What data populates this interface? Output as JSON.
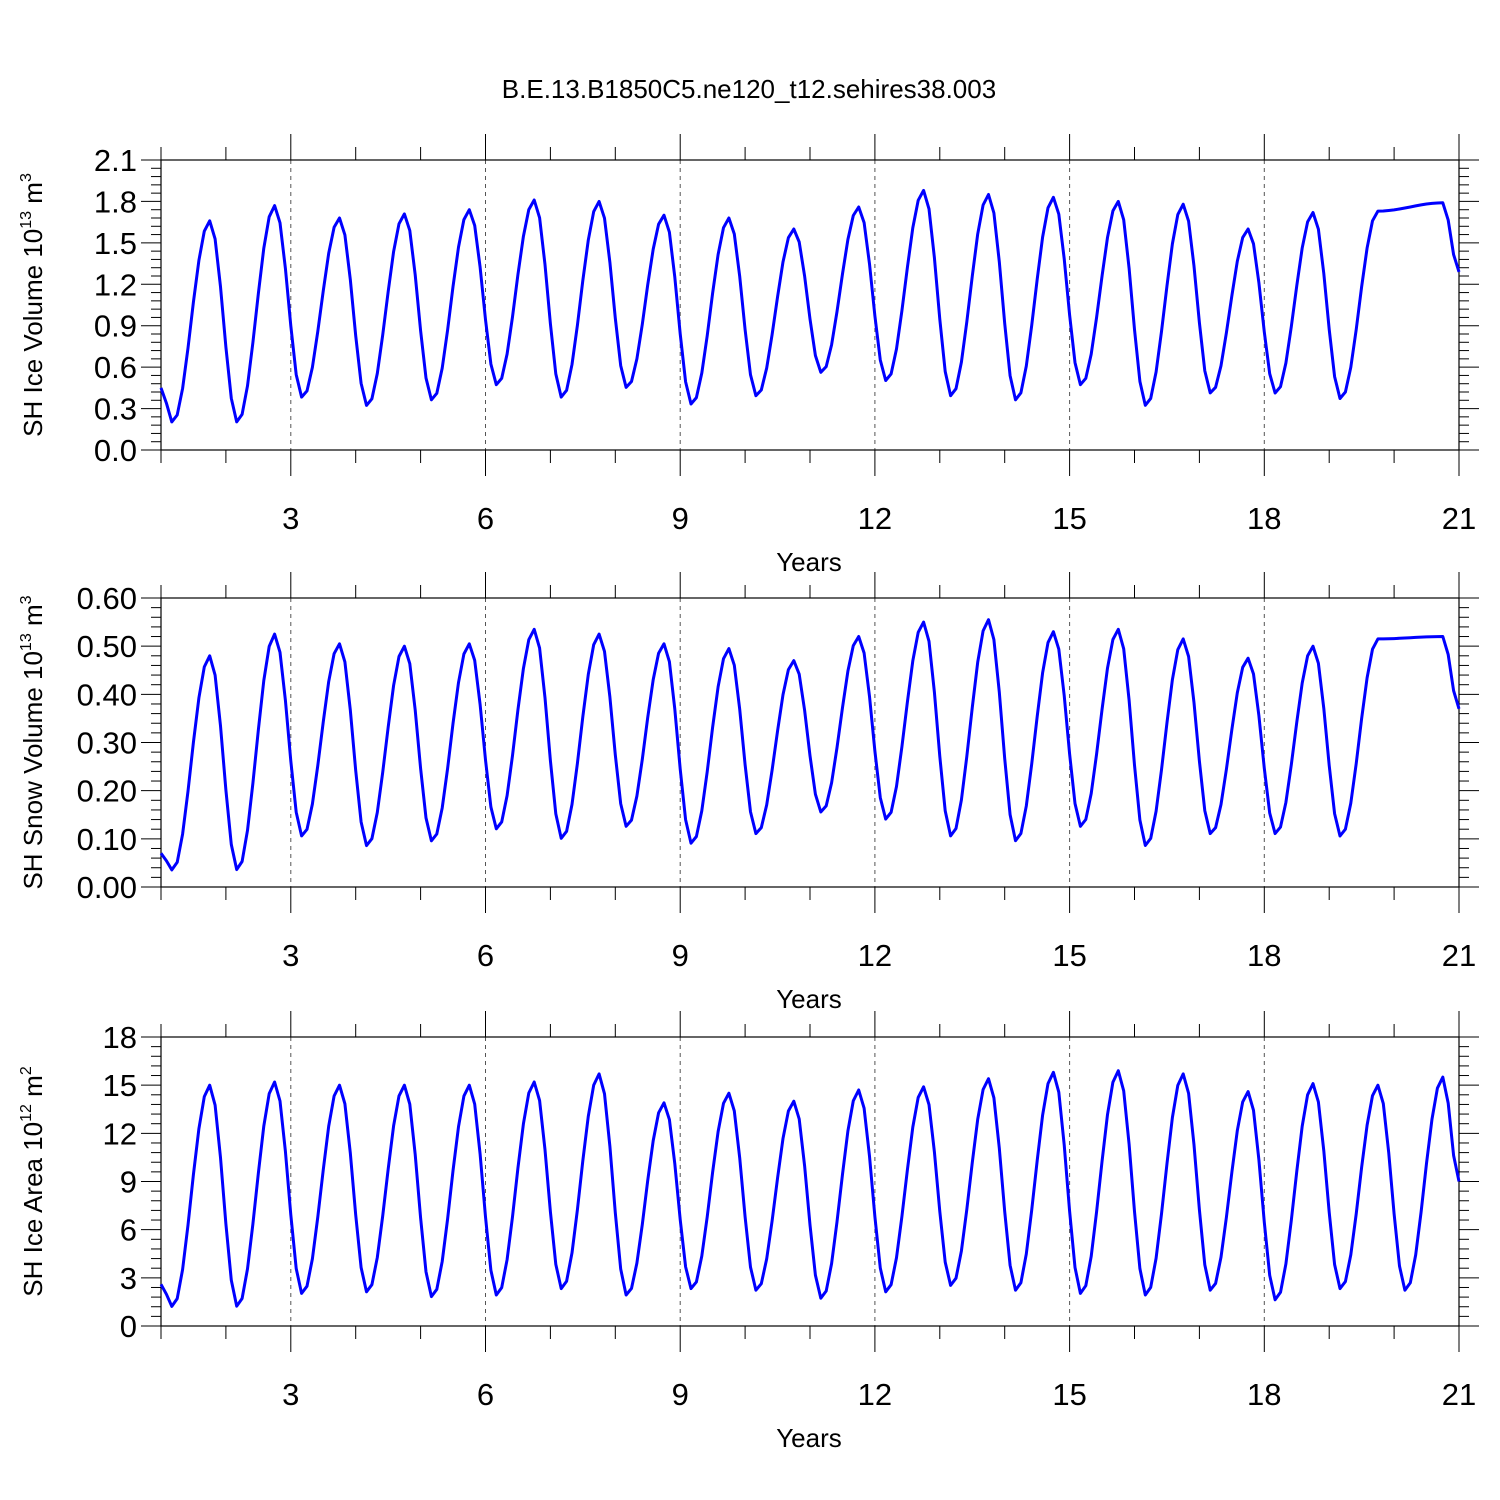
{
  "title": "B.E.13.B1850C5.ne120_t12.sehires38.003",
  "series_color": "#0000ff",
  "chart_data": [
    {
      "type": "line",
      "ylabel": "SH Ice Volume 10",
      "ylabel_exp": "13",
      "ylabel_unit": " m",
      "ylabel_unit_exp": "3",
      "xlabel": "Years",
      "xlim": [
        1,
        21
      ],
      "ylim": [
        0,
        2.1
      ],
      "xticks": [
        3,
        6,
        9,
        12,
        15,
        18,
        21
      ],
      "xtick_labels": [
        "3",
        "6",
        "9",
        "12",
        "15",
        "18",
        "21"
      ],
      "yticks": [
        0,
        0.3,
        0.6,
        0.9,
        1.2,
        1.5,
        1.8,
        2.1
      ],
      "ytick_labels": [
        "0.0",
        "0.3",
        "0.6",
        "0.9",
        "1.2",
        "1.5",
        "1.8",
        "2.1"
      ],
      "grid": "vertical dashed at major x ticks",
      "annual_min": [
        0.2,
        0.38,
        0.32,
        0.36,
        0.47,
        0.38,
        0.45,
        0.33,
        0.39,
        0.56,
        0.5,
        0.39,
        0.36,
        0.47,
        0.32,
        0.41,
        0.41,
        0.37
      ],
      "annual_max": [
        1.66,
        1.77,
        1.68,
        1.71,
        1.74,
        1.81,
        1.8,
        1.7,
        1.68,
        1.6,
        1.76,
        1.88,
        1.85,
        1.83,
        1.8,
        1.78,
        1.6,
        1.72,
        1.73,
        1.79
      ],
      "first_value": 0.45,
      "last_value": 1.29
    },
    {
      "type": "line",
      "ylabel": "SH Snow Volume 10",
      "ylabel_exp": "13",
      "ylabel_unit": " m",
      "ylabel_unit_exp": "3",
      "xlabel": "Years",
      "xlim": [
        1,
        21
      ],
      "ylim": [
        0,
        0.6
      ],
      "xticks": [
        3,
        6,
        9,
        12,
        15,
        18,
        21
      ],
      "xtick_labels": [
        "3",
        "6",
        "9",
        "12",
        "15",
        "18",
        "21"
      ],
      "yticks": [
        0,
        0.1,
        0.2,
        0.3,
        0.4,
        0.5,
        0.6
      ],
      "ytick_labels": [
        "0.00",
        "0.10",
        "0.20",
        "0.30",
        "0.40",
        "0.50",
        "0.60"
      ],
      "grid": "vertical dashed at major x ticks",
      "annual_min": [
        0.035,
        0.105,
        0.085,
        0.095,
        0.12,
        0.1,
        0.125,
        0.09,
        0.11,
        0.155,
        0.14,
        0.105,
        0.095,
        0.125,
        0.085,
        0.11,
        0.11,
        0.105
      ],
      "annual_max": [
        0.48,
        0.525,
        0.505,
        0.5,
        0.505,
        0.535,
        0.525,
        0.505,
        0.495,
        0.47,
        0.52,
        0.55,
        0.555,
        0.53,
        0.535,
        0.515,
        0.475,
        0.5,
        0.515,
        0.52
      ],
      "first_value": 0.07,
      "last_value": 0.37
    },
    {
      "type": "line",
      "ylabel": "SH Ice Area 10",
      "ylabel_exp": "12",
      "ylabel_unit": " m",
      "ylabel_unit_exp": "2",
      "xlabel": "Years",
      "xlim": [
        1,
        21
      ],
      "ylim": [
        0,
        18
      ],
      "xticks": [
        3,
        6,
        9,
        12,
        15,
        18,
        21
      ],
      "xtick_labels": [
        "3",
        "6",
        "9",
        "12",
        "15",
        "18",
        "21"
      ],
      "yticks": [
        0,
        3,
        6,
        9,
        12,
        15,
        18
      ],
      "ytick_labels": [
        "0",
        "3",
        "6",
        "9",
        "12",
        "15",
        "18"
      ],
      "grid": "vertical dashed at major x ticks",
      "annual_min": [
        1.2,
        2.0,
        2.1,
        1.8,
        1.9,
        2.3,
        1.9,
        2.3,
        2.2,
        1.7,
        2.1,
        2.5,
        2.2,
        2.0,
        1.9,
        2.2,
        1.6,
        2.3,
        2.2,
        1.9
      ],
      "annual_max": [
        15.0,
        15.2,
        15.0,
        15.0,
        15.0,
        15.2,
        15.7,
        13.9,
        14.5,
        14.0,
        14.7,
        14.9,
        15.4,
        15.8,
        15.9,
        15.7,
        14.6,
        15.1,
        15.0,
        15.5
      ],
      "first_value": 2.6,
      "last_value": 9.0
    }
  ]
}
